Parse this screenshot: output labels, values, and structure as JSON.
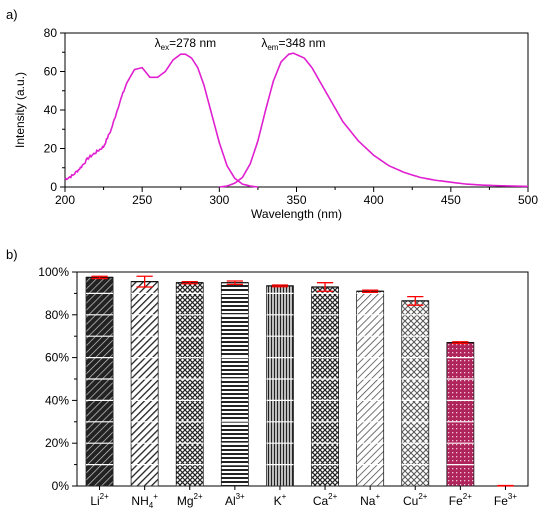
{
  "colors": {
    "curve": "#e020d0",
    "error_bar": "#ff0000",
    "fe2_bar": "#b0245c",
    "bar_dark": "#2a2a2a"
  },
  "chart_data": [
    {
      "panel": "a)",
      "type": "line",
      "xlabel": "Wavelength (nm)",
      "ylabel": "Intensity (a.u.)",
      "xlim": [
        200,
        500
      ],
      "ylim": [
        0,
        80
      ],
      "xticks": [
        "200",
        "250",
        "300",
        "350",
        "400",
        "450",
        "500"
      ],
      "yticks": [
        "0",
        "20",
        "40",
        "60",
        "80"
      ],
      "annotations": [
        {
          "symbol": "λ",
          "sub": "ex",
          "text": "=278 nm",
          "x": 278
        },
        {
          "symbol": "λ",
          "sub": "em",
          "text": "=348 nm",
          "x": 348
        }
      ],
      "series": [
        {
          "role": "excitation",
          "x": [
            200,
            205,
            210,
            215,
            220,
            225,
            230,
            235,
            240,
            245,
            250,
            255,
            260,
            265,
            270,
            275,
            278,
            282,
            286,
            290,
            295,
            300,
            305,
            310,
            315,
            320,
            325
          ],
          "y": [
            4,
            6,
            10,
            15,
            18,
            21,
            30,
            43,
            54,
            61,
            62,
            57,
            57,
            60,
            66,
            69,
            69,
            67,
            62,
            53,
            38,
            23,
            11,
            4.5,
            1.5,
            0.5,
            0
          ]
        },
        {
          "role": "emission",
          "x": [
            300,
            305,
            310,
            315,
            320,
            325,
            330,
            335,
            340,
            345,
            348,
            355,
            360,
            365,
            370,
            375,
            380,
            390,
            400,
            410,
            420,
            430,
            440,
            450,
            460,
            470,
            480,
            490,
            500
          ],
          "y": [
            0,
            0.5,
            2,
            5,
            12,
            24,
            40,
            55,
            65,
            69,
            69.5,
            67,
            62,
            55,
            48,
            41,
            34,
            24,
            16.5,
            11,
            7.5,
            5,
            3.5,
            2.5,
            1.5,
            1,
            0.7,
            0.5,
            0.3
          ]
        }
      ]
    },
    {
      "panel": "b)",
      "type": "bar",
      "ylim": [
        0,
        100
      ],
      "yticks": [
        "0%",
        "20%",
        "40%",
        "60%",
        "80%",
        "100%"
      ],
      "categories": [
        {
          "base": "Li",
          "sub": "",
          "sup": "2+"
        },
        {
          "base": "NH",
          "sub": "4",
          "sup": "+"
        },
        {
          "base": "Mg",
          "sub": "",
          "sup": "2+"
        },
        {
          "base": "Al",
          "sub": "",
          "sup": "3+"
        },
        {
          "base": "K",
          "sub": "",
          "sup": "+"
        },
        {
          "base": "Ca",
          "sub": "",
          "sup": "2+"
        },
        {
          "base": "Na",
          "sub": "",
          "sup": "+"
        },
        {
          "base": "Cu",
          "sub": "",
          "sup": "2+"
        },
        {
          "base": "Fe",
          "sub": "",
          "sup": "2+"
        },
        {
          "base": "Fe",
          "sub": "",
          "sup": "3+"
        }
      ],
      "values": [
        97.5,
        95.5,
        95,
        95,
        93.5,
        93,
        91,
        86.5,
        67,
        0
      ],
      "errors": [
        0.5,
        2.5,
        0.5,
        0.8,
        0.4,
        2,
        0.5,
        2,
        0.4,
        0.2
      ],
      "patterns": [
        "diag-dark",
        "diag-fine",
        "cross",
        "horiz",
        "vert",
        "cross",
        "diag-light",
        "cross-light",
        "fe-dots",
        "none"
      ]
    }
  ]
}
